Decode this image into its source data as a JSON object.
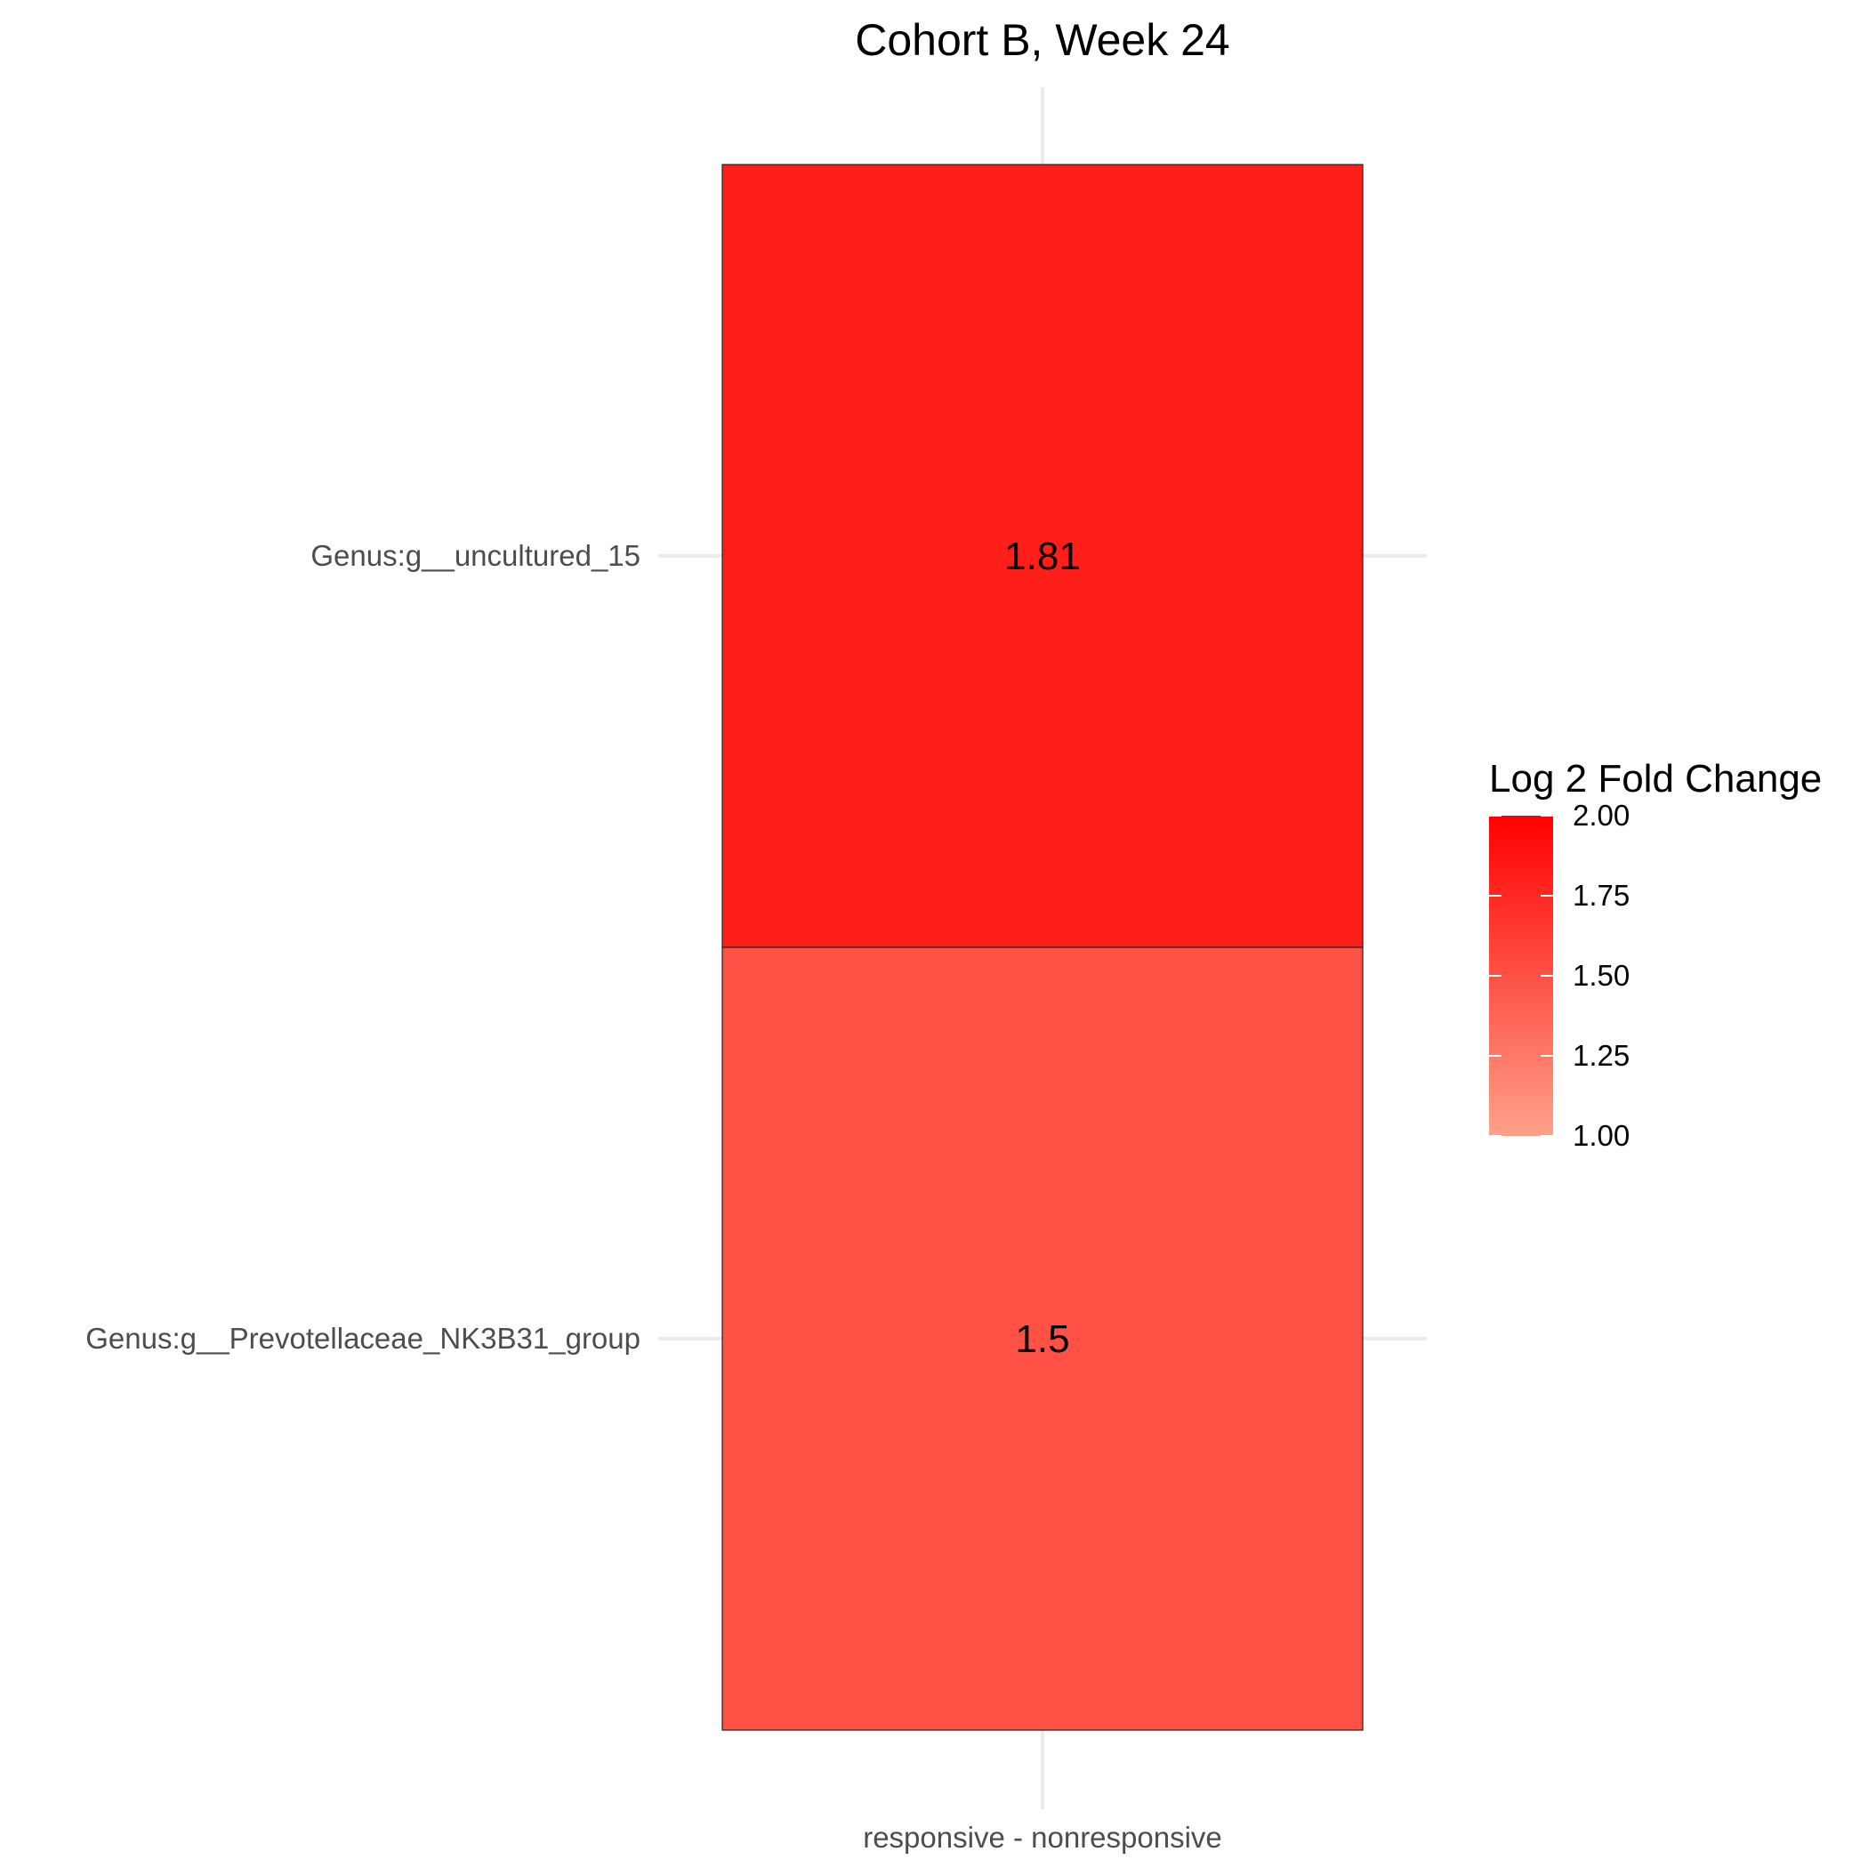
{
  "chart_data": {
    "type": "heatmap",
    "title": "Cohort B, Week 24",
    "x_categories": [
      "responsive - nonresponsive"
    ],
    "y_categories": [
      "Genus:g__uncultured_15",
      "Genus:g__Prevotellaceae_NK3B31_group"
    ],
    "cells": [
      {
        "x": "responsive - nonresponsive",
        "y": "Genus:g__uncultured_15",
        "value": 1.81,
        "label": "1.81"
      },
      {
        "x": "responsive - nonresponsive",
        "y": "Genus:g__Prevotellaceae_NK3B31_group",
        "value": 1.5,
        "label": "1.5"
      }
    ],
    "legend": {
      "title": "Log 2 Fold Change",
      "range": [
        1.0,
        2.0
      ],
      "ticks": [
        2.0,
        1.75,
        1.5,
        1.25,
        1.0
      ],
      "tick_labels": [
        "2.00",
        "1.75",
        "1.50",
        "1.25",
        "1.00"
      ],
      "color_low": "#fea18a",
      "color_high": "#ff0000",
      "placement": "right"
    },
    "grid": true
  }
}
